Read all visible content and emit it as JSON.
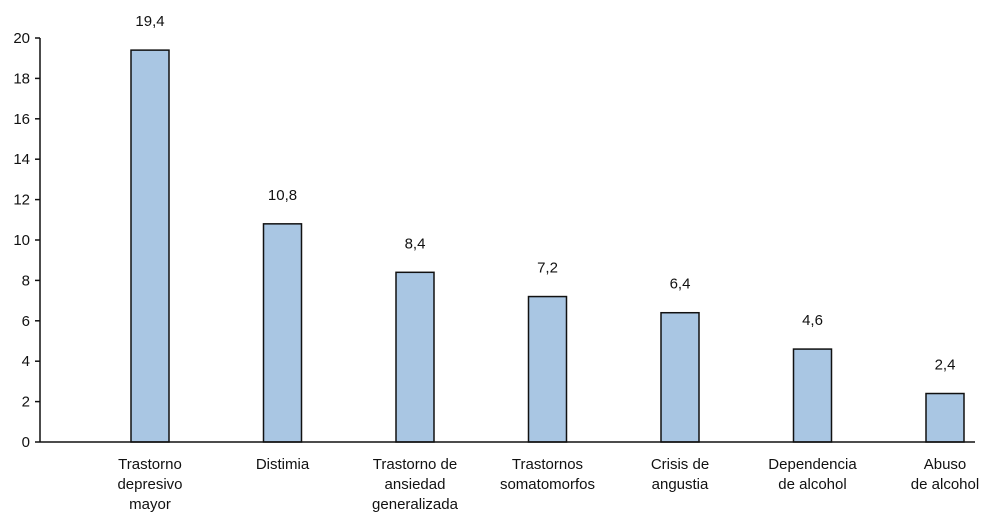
{
  "chart_data": {
    "type": "bar",
    "categories": [
      [
        "Trastorno",
        "depresivo",
        "mayor"
      ],
      [
        "Distimia"
      ],
      [
        "Trastorno de",
        "ansiedad",
        "generalizada"
      ],
      [
        "Trastornos",
        "somatomorfos"
      ],
      [
        "Crisis de",
        "angustia"
      ],
      [
        "Dependencia",
        "de alcohol"
      ],
      [
        "Abuso",
        "de alcohol"
      ]
    ],
    "values": [
      19.4,
      10.8,
      8.4,
      7.2,
      6.4,
      4.6,
      2.4
    ],
    "value_labels": [
      "19,4",
      "10,8",
      "8,4",
      "7,2",
      "6,4",
      "4,6",
      "2,4"
    ],
    "title": "",
    "xlabel": "",
    "ylabel": "",
    "ylim": [
      0,
      20
    ],
    "yticks": [
      "0",
      "2",
      "4",
      "6",
      "8",
      "10",
      "12",
      "14",
      "16",
      "18",
      "20"
    ],
    "grid": false,
    "legend": "none",
    "bar_color": "#a9c6e3",
    "bar_edge_color": "#111111"
  }
}
